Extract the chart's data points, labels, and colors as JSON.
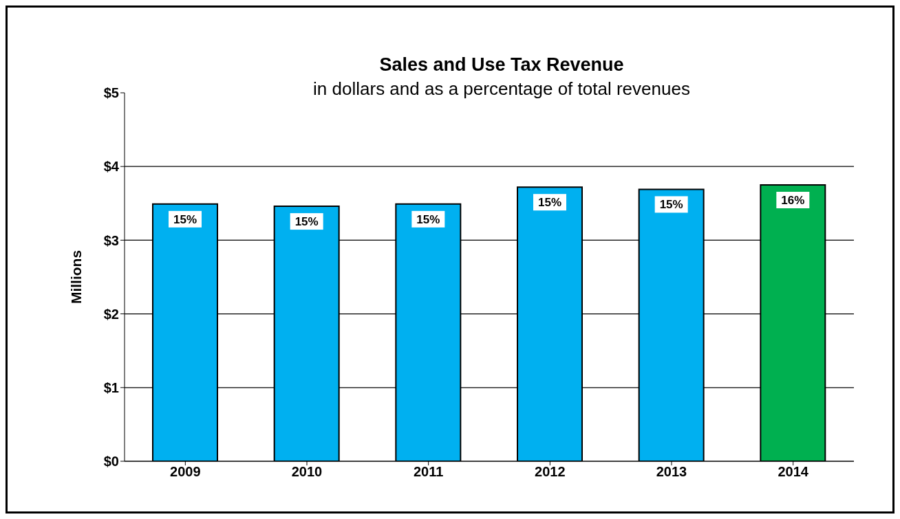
{
  "chart_data": {
    "type": "bar",
    "title": "Sales and Use Tax Revenue",
    "subtitle": "in dollars and as a percentage of total revenues",
    "ylabel": "Millions",
    "categories": [
      "2009",
      "2010",
      "2011",
      "2012",
      "2013",
      "2014"
    ],
    "values": [
      3.49,
      3.46,
      3.49,
      3.72,
      3.69,
      3.75
    ],
    "colors": [
      "#00b0f0",
      "#00b0f0",
      "#00b0f0",
      "#00b0f0",
      "#00b0f0",
      "#00b050"
    ],
    "annotations": [
      {
        "text": "15%",
        "x": "2009",
        "y": 3.49
      },
      {
        "text": "15%",
        "x": "2010",
        "y": 3.46
      },
      {
        "text": "15%",
        "x": "2011",
        "y": 3.49
      },
      {
        "text": "15%",
        "x": "2012",
        "y": 3.72
      },
      {
        "text": "15%",
        "x": "2013",
        "y": 3.69
      },
      {
        "text": "16%",
        "x": "2014",
        "y": 3.75
      }
    ],
    "ylim": [
      0,
      5
    ],
    "yticks": [
      {
        "value": 0,
        "label": "$0"
      },
      {
        "value": 1,
        "label": "$1"
      },
      {
        "value": 2,
        "label": "$2"
      },
      {
        "value": 3,
        "label": "$3"
      },
      {
        "value": 4,
        "label": "$4"
      },
      {
        "value": 5,
        "label": "$5"
      }
    ],
    "grid": "y",
    "legend": false
  }
}
